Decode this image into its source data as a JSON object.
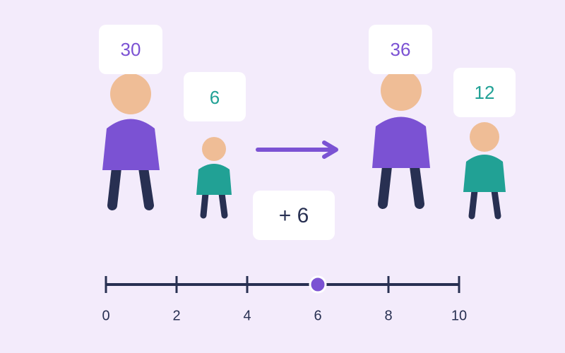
{
  "before": {
    "adult_label": "30",
    "child_label": "6"
  },
  "after": {
    "adult_label": "36",
    "child_label": "12"
  },
  "operation": "+ 6",
  "slider": {
    "range": [
      0,
      10
    ],
    "ticks": [
      0,
      2,
      4,
      6,
      8,
      10
    ],
    "value": 6
  }
}
